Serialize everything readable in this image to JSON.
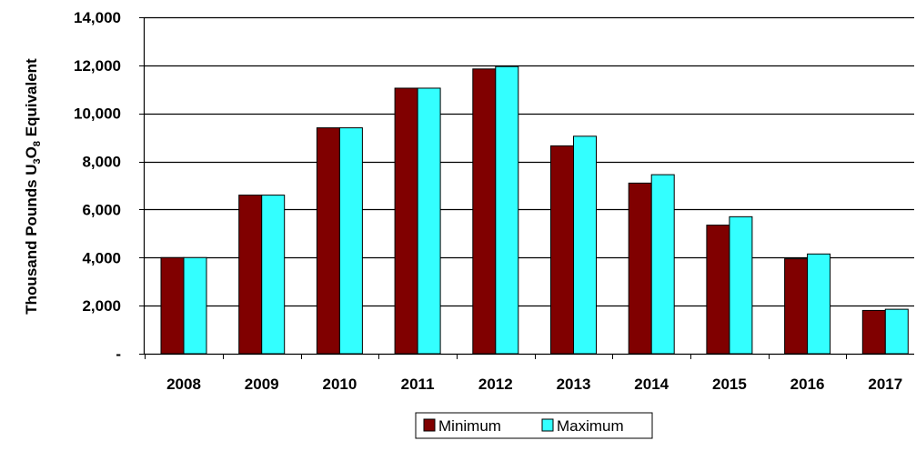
{
  "chart_data": {
    "type": "bar",
    "ylabel": "Thousand Pounds U3O8 Equivalent",
    "ylabel_parts": {
      "main": "Thousand Pounds U",
      "sub1": "3",
      "mid": "O",
      "sub2": "8",
      "end": " Equivalent"
    },
    "categories": [
      "2008",
      "2009",
      "2010",
      "2011",
      "2012",
      "2013",
      "2014",
      "2015",
      "2016",
      "2017"
    ],
    "series": [
      {
        "name": "Minimum",
        "color": "#800000",
        "values": [
          4000,
          6600,
          9400,
          11050,
          11850,
          8650,
          7100,
          5350,
          3950,
          1800
        ]
      },
      {
        "name": "Maximum",
        "color": "#33FFFF",
        "values": [
          4000,
          6600,
          9400,
          11050,
          11950,
          9050,
          7450,
          5700,
          4150,
          1850
        ]
      }
    ],
    "ylim": [
      0,
      14000
    ],
    "yticks": [
      0,
      2000,
      4000,
      6000,
      8000,
      10000,
      12000,
      14000
    ],
    "ytick_labels": [
      "-",
      "2,000",
      "4,000",
      "6,000",
      "8,000",
      "10,000",
      "12,000",
      "14,000"
    ],
    "grid": true,
    "legend_position": "bottom"
  }
}
